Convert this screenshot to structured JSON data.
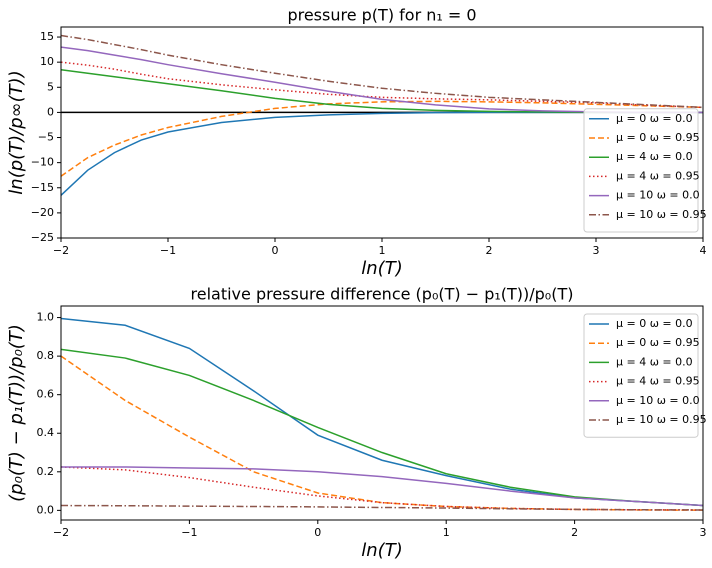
{
  "chart_data": [
    {
      "type": "line",
      "title": "pressure p(T) for n₁ = 0",
      "x_label": "ln(T)",
      "y_label": "ln(p(T)/p∞(T))",
      "x": [
        -2,
        -1.75,
        -1.5,
        -1.25,
        -1,
        -0.5,
        0,
        0.5,
        1,
        1.5,
        2,
        2.5,
        3,
        3.5,
        4
      ],
      "xlim": [
        -2,
        4
      ],
      "ylim": [
        -25,
        17
      ],
      "xticks": [
        {
          "value": -2,
          "label": "−2"
        },
        {
          "value": -1,
          "label": "−1"
        },
        0,
        1,
        2,
        3,
        4
      ],
      "yticks": [
        {
          "value": -25,
          "label": "−25"
        },
        {
          "value": -20,
          "label": "−20"
        },
        {
          "value": -15,
          "label": "−15"
        },
        {
          "value": -10,
          "label": "−10"
        },
        {
          "value": -5,
          "label": "−5"
        },
        0,
        5,
        10,
        15
      ],
      "hlines": [
        0
      ],
      "legend": "lower right",
      "series": [
        {
          "name": "μ = 0 ω = 0.0",
          "color": "#1f77b4",
          "dash": "solid",
          "values": [
            -16.5,
            -11.5,
            -8,
            -5.5,
            -3.9,
            -2,
            -1,
            -0.5,
            -0.2,
            -0.05,
            0,
            0,
            0,
            0,
            0
          ]
        },
        {
          "name": "μ = 0 ω = 0.95",
          "color": "#ff7f0e",
          "dash": "dashed",
          "values": [
            -12.7,
            -9,
            -6.5,
            -4.5,
            -3,
            -0.8,
            0.8,
            1.7,
            2.1,
            2.2,
            2.1,
            1.9,
            1.6,
            1.3,
            1.0
          ]
        },
        {
          "name": "μ = 4 ω = 0.0",
          "color": "#2ca02c",
          "dash": "solid",
          "values": [
            8.5,
            7.8,
            7.1,
            6.4,
            5.7,
            4.3,
            2.8,
            1.6,
            0.8,
            0.4,
            0.2,
            0.1,
            0,
            0,
            0
          ]
        },
        {
          "name": "μ = 4 ω = 0.95",
          "color": "#d62728",
          "dash": "dotted",
          "values": [
            10,
            9.4,
            8.6,
            7.6,
            6.7,
            5.5,
            4.5,
            3.6,
            3,
            2.7,
            2.5,
            2.2,
            1.9,
            1.4,
            1.0
          ]
        },
        {
          "name": "μ = 10 ω = 0.0",
          "color": "#9467bd",
          "dash": "solid",
          "values": [
            13,
            12.3,
            11.4,
            10.5,
            9.5,
            7.7,
            6,
            4.2,
            2.6,
            1.5,
            0.7,
            0.3,
            0.1,
            0,
            0
          ]
        },
        {
          "name": "μ = 10 ω = 0.95",
          "color": "#8c564b",
          "dash": "dashdot",
          "values": [
            15.3,
            14.5,
            13.5,
            12.5,
            11.4,
            9.5,
            7.8,
            6.2,
            4.8,
            3.8,
            3,
            2.5,
            2,
            1.5,
            1.0
          ]
        }
      ]
    },
    {
      "type": "line",
      "title": "relative pressure difference (p₀(T) − p₁(T))/p₀(T)",
      "x_label": "ln(T)",
      "y_label": "(p₀(T) − p₁(T))/p₀(T)",
      "x": [
        -2,
        -1.5,
        -1,
        -0.5,
        0,
        0.5,
        1,
        1.5,
        2,
        2.5,
        3
      ],
      "xlim": [
        -2,
        3
      ],
      "ylim": [
        -0.05,
        1.06
      ],
      "xticks": [
        {
          "value": -2,
          "label": "−2"
        },
        {
          "value": -1,
          "label": "−1"
        },
        0,
        1,
        2,
        3
      ],
      "yticks": [
        {
          "value": 0,
          "label": "0.0"
        },
        0.2,
        0.4,
        0.6,
        0.8,
        {
          "value": 1,
          "label": "1.0"
        }
      ],
      "hlines": [],
      "legend": "upper right",
      "series": [
        {
          "name": "μ = 0 ω = 0.0",
          "color": "#1f77b4",
          "dash": "solid",
          "values": [
            0.995,
            0.96,
            0.84,
            0.62,
            0.39,
            0.26,
            0.18,
            0.11,
            0.065,
            0.045,
            0.025
          ]
        },
        {
          "name": "μ = 0 ω = 0.95",
          "color": "#ff7f0e",
          "dash": "dashed",
          "values": [
            0.8,
            0.57,
            0.38,
            0.2,
            0.09,
            0.04,
            0.02,
            0.01,
            0.005,
            0.002,
            0.001
          ]
        },
        {
          "name": "μ = 4 ω = 0.0",
          "color": "#2ca02c",
          "dash": "solid",
          "values": [
            0.835,
            0.79,
            0.7,
            0.57,
            0.43,
            0.3,
            0.19,
            0.12,
            0.07,
            0.045,
            0.025
          ]
        },
        {
          "name": "μ = 4 ω = 0.95",
          "color": "#d62728",
          "dash": "dotted",
          "values": [
            0.225,
            0.21,
            0.17,
            0.12,
            0.075,
            0.04,
            0.02,
            0.01,
            0.005,
            0.003,
            0.002
          ]
        },
        {
          "name": "μ = 10 ω = 0.0",
          "color": "#9467bd",
          "dash": "solid",
          "values": [
            0.225,
            0.225,
            0.22,
            0.215,
            0.2,
            0.175,
            0.14,
            0.1,
            0.065,
            0.045,
            0.025
          ]
        },
        {
          "name": "μ = 10 ω = 0.95",
          "color": "#8c564b",
          "dash": "dashdot",
          "values": [
            0.025,
            0.024,
            0.022,
            0.02,
            0.018,
            0.015,
            0.012,
            0.008,
            0.005,
            0.003,
            0.002
          ]
        }
      ]
    }
  ]
}
